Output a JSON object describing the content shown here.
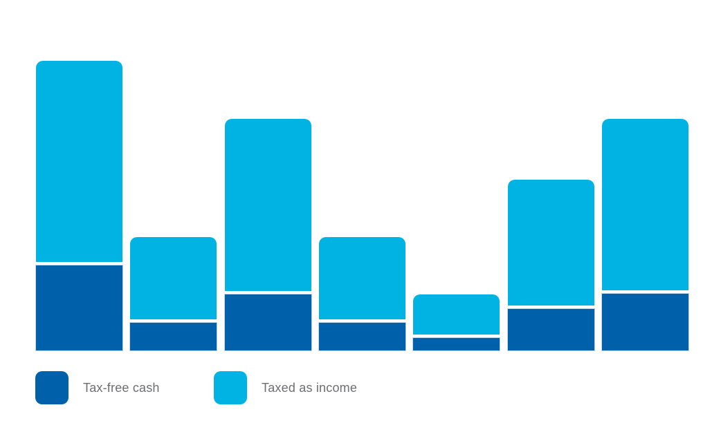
{
  "chart_data": {
    "type": "bar",
    "subtype": "stacked",
    "orientation": "vertical",
    "title": "",
    "xlabel": "",
    "ylabel": "",
    "axes_visible": false,
    "gridlines": false,
    "tick_labels": [],
    "legend_position": "bottom-left",
    "bar_count": 7,
    "series": [
      {
        "name": "Tax-free cash",
        "color": "#0060A9",
        "values": [
          123,
          40,
          81,
          40,
          18,
          60,
          82
        ]
      },
      {
        "name": "Taxed as income",
        "color": "#00B3E3",
        "values": [
          291,
          119,
          249,
          119,
          58,
          182,
          248
        ]
      }
    ],
    "value_units": "relative height (no value axis shown)",
    "stack_totals": [
      414,
      159,
      330,
      159,
      76,
      242,
      330
    ]
  },
  "legend": {
    "items": [
      {
        "label": "Tax-free cash",
        "color": "#0060A9"
      },
      {
        "label": "Taxed as income",
        "color": "#00B3E3"
      }
    ]
  },
  "colors": {
    "background": "#FFFFFF",
    "tax_free_cash": "#0060A9",
    "taxed_as_income": "#00B3E3",
    "legend_text": "#6D6E71",
    "segment_separator": "#FFFFFF"
  }
}
